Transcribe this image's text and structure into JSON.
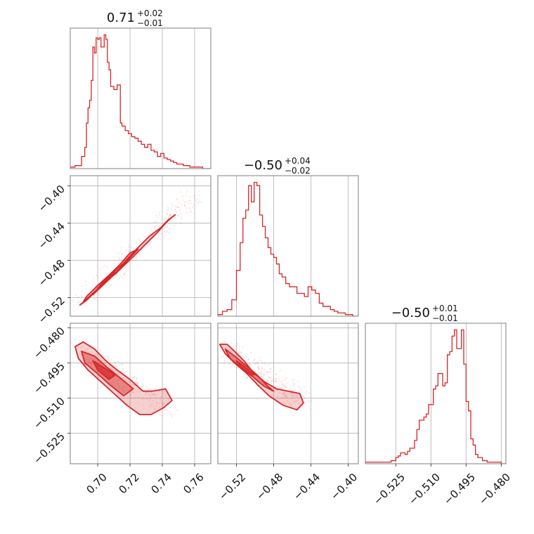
{
  "chart_data": {
    "type": "corner",
    "color": "#d62728",
    "parameters": [
      {
        "range": [
          0.683,
          0.77
        ],
        "ticks": [
          0.7,
          0.72,
          0.74,
          0.76
        ],
        "tick_labels": [
          "0.70",
          "0.72",
          "0.74",
          "0.76"
        ],
        "title": {
          "value": "0.71",
          "plus": "+0.02",
          "minus": "−0.01"
        },
        "hist": {
          "x": [
            0.683,
            0.686,
            0.69,
            0.692,
            0.693,
            0.694,
            0.695,
            0.696,
            0.697,
            0.698,
            0.699,
            0.7,
            0.701,
            0.702,
            0.703,
            0.704,
            0.705,
            0.706,
            0.707,
            0.708,
            0.71,
            0.712,
            0.714,
            0.715,
            0.717,
            0.719,
            0.721,
            0.723,
            0.725,
            0.727,
            0.729,
            0.731,
            0.733,
            0.735,
            0.737,
            0.739,
            0.741,
            0.743,
            0.745,
            0.747,
            0.749,
            0.751,
            0.753,
            0.755,
            0.757,
            0.759,
            0.762,
            0.765,
            0.77
          ],
          "values": [
            1,
            2,
            8,
            14,
            30,
            40,
            45,
            58,
            80,
            76,
            86,
            85,
            86,
            80,
            80,
            88,
            85,
            70,
            65,
            54,
            52,
            55,
            30,
            28,
            25,
            23,
            21,
            20,
            18,
            16,
            14,
            16,
            12,
            11,
            8,
            10,
            7,
            6,
            5,
            4,
            3,
            3,
            2,
            2,
            1,
            1,
            1,
            0,
            0
          ]
        }
      },
      {
        "range": [
          -0.54,
          -0.389
        ],
        "ticks": [
          -0.52,
          -0.48,
          -0.44,
          -0.4
        ],
        "tick_labels": [
          "−0.52",
          "−0.48",
          "−0.44",
          "−0.40"
        ],
        "title": {
          "value": "−0.50",
          "plus": "+0.04",
          "minus": "−0.02"
        },
        "hist": {
          "x": [
            -0.54,
            -0.535,
            -0.53,
            -0.525,
            -0.52,
            -0.516,
            -0.513,
            -0.51,
            -0.507,
            -0.504,
            -0.501,
            -0.498,
            -0.495,
            -0.492,
            -0.489,
            -0.486,
            -0.483,
            -0.48,
            -0.477,
            -0.474,
            -0.471,
            -0.467,
            -0.463,
            -0.459,
            -0.455,
            -0.451,
            -0.447,
            -0.443,
            -0.439,
            -0.435,
            -0.431,
            -0.427,
            -0.423,
            -0.419,
            -0.415,
            -0.411,
            -0.407,
            -0.403,
            -0.399,
            -0.395,
            -0.389
          ],
          "values": [
            1,
            3,
            4,
            10,
            28,
            45,
            60,
            65,
            80,
            70,
            82,
            80,
            62,
            55,
            48,
            42,
            38,
            36,
            32,
            26,
            24,
            20,
            18,
            18,
            14,
            14,
            12,
            18,
            16,
            14,
            8,
            6,
            6,
            4,
            3,
            2,
            2,
            1,
            1,
            0,
            0
          ]
        }
      },
      {
        "range": [
          -0.538,
          -0.478
        ],
        "ticks": [
          -0.525,
          -0.51,
          -0.495,
          -0.48
        ],
        "tick_labels": [
          "−0.525",
          "−0.510",
          "−0.495",
          "−0.480"
        ],
        "title": {
          "value": "−0.50",
          "plus": "+0.01",
          "minus": "−0.01"
        },
        "hist": {
          "x": [
            -0.538,
            -0.534,
            -0.531,
            -0.529,
            -0.527,
            -0.525,
            -0.524,
            -0.523,
            -0.521,
            -0.52,
            -0.519,
            -0.517,
            -0.516,
            -0.515,
            -0.513,
            -0.512,
            -0.511,
            -0.509,
            -0.508,
            -0.507,
            -0.505,
            -0.504,
            -0.503,
            -0.502,
            -0.501,
            -0.5,
            -0.499,
            -0.498,
            -0.497,
            -0.496,
            -0.495,
            -0.494,
            -0.493,
            -0.492,
            -0.491,
            -0.49,
            -0.488,
            -0.486,
            -0.484,
            -0.482,
            -0.48,
            -0.478
          ],
          "values": [
            1,
            1,
            1,
            1,
            2,
            4,
            5,
            7,
            6,
            8,
            10,
            15,
            22,
            28,
            30,
            32,
            38,
            48,
            50,
            58,
            50,
            52,
            70,
            72,
            82,
            86,
            74,
            74,
            86,
            64,
            40,
            34,
            16,
            12,
            6,
            4,
            2,
            1,
            1,
            1,
            0,
            0
          ]
        }
      }
    ],
    "pairs": [
      {
        "row": 1,
        "col": 0,
        "levels": [
          [
            [
              0.689,
              -0.528
            ],
            [
              0.693,
              -0.523
            ],
            [
              0.699,
              -0.513
            ],
            [
              0.706,
              -0.502
            ],
            [
              0.713,
              -0.491
            ],
            [
              0.722,
              -0.476
            ],
            [
              0.73,
              -0.462
            ],
            [
              0.737,
              -0.45
            ],
            [
              0.742,
              -0.44
            ],
            [
              0.745,
              -0.435
            ],
            [
              0.748,
              -0.431
            ],
            [
              0.744,
              -0.436
            ],
            [
              0.739,
              -0.445
            ],
            [
              0.732,
              -0.454
            ],
            [
              0.724,
              -0.468
            ],
            [
              0.716,
              -0.483
            ],
            [
              0.708,
              -0.496
            ],
            [
              0.701,
              -0.509
            ],
            [
              0.694,
              -0.521
            ],
            [
              0.689,
              -0.528
            ]
          ],
          [
            [
              0.691,
              -0.525
            ],
            [
              0.698,
              -0.514
            ],
            [
              0.705,
              -0.503
            ],
            [
              0.712,
              -0.492
            ],
            [
              0.719,
              -0.479
            ],
            [
              0.725,
              -0.468
            ],
            [
              0.72,
              -0.472
            ],
            [
              0.714,
              -0.484
            ],
            [
              0.707,
              -0.496
            ],
            [
              0.7,
              -0.507
            ],
            [
              0.693,
              -0.519
            ],
            [
              0.691,
              -0.525
            ]
          ],
          [
            [
              0.697,
              -0.517
            ],
            [
              0.703,
              -0.507
            ],
            [
              0.709,
              -0.497
            ],
            [
              0.712,
              -0.493
            ],
            [
              0.708,
              -0.495
            ],
            [
              0.702,
              -0.506
            ],
            [
              0.697,
              -0.517
            ]
          ]
        ],
        "scatter_center": [
          [
            0.69,
            -0.525
          ],
          [
            0.76,
            -0.41
          ]
        ]
      },
      {
        "row": 2,
        "col": 0,
        "levels": [
          [
            [
              0.686,
              -0.488
            ],
            [
              0.691,
              -0.486
            ],
            [
              0.698,
              -0.489
            ],
            [
              0.705,
              -0.494
            ],
            [
              0.712,
              -0.498
            ],
            [
              0.72,
              -0.502
            ],
            [
              0.728,
              -0.507
            ],
            [
              0.734,
              -0.507
            ],
            [
              0.742,
              -0.506
            ],
            [
              0.746,
              -0.511
            ],
            [
              0.741,
              -0.514
            ],
            [
              0.733,
              -0.517
            ],
            [
              0.726,
              -0.517
            ],
            [
              0.718,
              -0.513
            ],
            [
              0.71,
              -0.508
            ],
            [
              0.702,
              -0.503
            ],
            [
              0.694,
              -0.498
            ],
            [
              0.688,
              -0.493
            ],
            [
              0.686,
              -0.488
            ]
          ],
          [
            [
              0.69,
              -0.49
            ],
            [
              0.698,
              -0.492
            ],
            [
              0.706,
              -0.497
            ],
            [
              0.715,
              -0.502
            ],
            [
              0.722,
              -0.506
            ],
            [
              0.716,
              -0.509
            ],
            [
              0.707,
              -0.504
            ],
            [
              0.699,
              -0.499
            ],
            [
              0.692,
              -0.495
            ],
            [
              0.69,
              -0.49
            ]
          ],
          [
            [
              0.697,
              -0.494
            ],
            [
              0.704,
              -0.497
            ],
            [
              0.711,
              -0.5
            ],
            [
              0.707,
              -0.502
            ],
            [
              0.7,
              -0.498
            ],
            [
              0.697,
              -0.494
            ]
          ]
        ],
        "scatter_center": [
          [
            0.69,
            -0.49
          ],
          [
            0.745,
            -0.515
          ]
        ]
      },
      {
        "row": 2,
        "col": 1,
        "levels": [
          [
            [
              -0.538,
              -0.487
            ],
            [
              -0.53,
              -0.487
            ],
            [
              -0.522,
              -0.49
            ],
            [
              -0.512,
              -0.494
            ],
            [
              -0.502,
              -0.499
            ],
            [
              -0.49,
              -0.503
            ],
            [
              -0.477,
              -0.506
            ],
            [
              -0.465,
              -0.507
            ],
            [
              -0.452,
              -0.508
            ],
            [
              -0.448,
              -0.512
            ],
            [
              -0.455,
              -0.515
            ],
            [
              -0.47,
              -0.513
            ],
            [
              -0.485,
              -0.509
            ],
            [
              -0.498,
              -0.504
            ],
            [
              -0.51,
              -0.499
            ],
            [
              -0.522,
              -0.495
            ],
            [
              -0.532,
              -0.491
            ],
            [
              -0.538,
              -0.487
            ]
          ],
          [
            [
              -0.532,
              -0.489
            ],
            [
              -0.522,
              -0.492
            ],
            [
              -0.51,
              -0.496
            ],
            [
              -0.498,
              -0.5
            ],
            [
              -0.486,
              -0.505
            ],
            [
              -0.48,
              -0.507
            ],
            [
              -0.49,
              -0.505
            ],
            [
              -0.502,
              -0.501
            ],
            [
              -0.515,
              -0.497
            ],
            [
              -0.527,
              -0.493
            ],
            [
              -0.532,
              -0.489
            ]
          ],
          [
            [
              -0.52,
              -0.494
            ],
            [
              -0.51,
              -0.497
            ],
            [
              -0.5,
              -0.5
            ],
            [
              -0.505,
              -0.5
            ],
            [
              -0.515,
              -0.497
            ],
            [
              -0.52,
              -0.494
            ]
          ]
        ],
        "scatter_center": [
          [
            -0.532,
            -0.489
          ],
          [
            -0.445,
            -0.512
          ]
        ]
      }
    ]
  }
}
